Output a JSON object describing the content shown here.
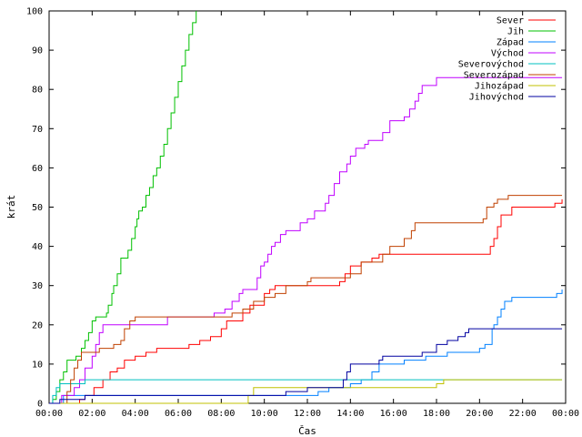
{
  "chart_data": {
    "type": "line",
    "step": true,
    "title": "",
    "xlabel": "Čas",
    "ylabel": "krát",
    "xlim": [
      "00:00",
      "24:00"
    ],
    "ylim": [
      0,
      100
    ],
    "x_ticks": [
      "00:00",
      "02:00",
      "04:00",
      "06:00",
      "08:00",
      "10:00",
      "12:00",
      "14:00",
      "16:00",
      "18:00",
      "20:00",
      "22:00",
      "00:00"
    ],
    "y_ticks": [
      "0",
      "10",
      "20",
      "30",
      "40",
      "50",
      "60",
      "70",
      "80",
      "90",
      "100"
    ],
    "grid": false,
    "legend_position": "top-right",
    "series": [
      {
        "name": "Sever",
        "color": "#ff0000",
        "points": [
          [
            "00:00",
            0
          ],
          [
            "01:25",
            1
          ],
          [
            "01:40",
            2
          ],
          [
            "02:05",
            4
          ],
          [
            "02:30",
            6
          ],
          [
            "02:50",
            8
          ],
          [
            "03:10",
            9
          ],
          [
            "03:30",
            11
          ],
          [
            "04:00",
            12
          ],
          [
            "04:30",
            13
          ],
          [
            "05:00",
            14
          ],
          [
            "06:30",
            15
          ],
          [
            "07:00",
            16
          ],
          [
            "07:30",
            17
          ],
          [
            "08:00",
            19
          ],
          [
            "08:15",
            21
          ],
          [
            "09:00",
            23
          ],
          [
            "09:20",
            25
          ],
          [
            "10:00",
            28
          ],
          [
            "10:15",
            29
          ],
          [
            "10:30",
            30
          ],
          [
            "13:30",
            31
          ],
          [
            "13:45",
            33
          ],
          [
            "14:00",
            35
          ],
          [
            "14:30",
            36
          ],
          [
            "15:00",
            37
          ],
          [
            "15:20",
            38
          ],
          [
            "20:30",
            40
          ],
          [
            "20:40",
            42
          ],
          [
            "20:50",
            45
          ],
          [
            "21:00",
            48
          ],
          [
            "21:30",
            50
          ],
          [
            "23:30",
            51
          ],
          [
            "23:50",
            52
          ]
        ]
      },
      {
        "name": "Jih",
        "color": "#00c000",
        "points": [
          [
            "00:00",
            0
          ],
          [
            "00:10",
            1
          ],
          [
            "00:20",
            3
          ],
          [
            "00:30",
            6
          ],
          [
            "00:40",
            8
          ],
          [
            "00:50",
            11
          ],
          [
            "01:15",
            12
          ],
          [
            "01:30",
            14
          ],
          [
            "01:40",
            16
          ],
          [
            "01:50",
            18
          ],
          [
            "02:00",
            21
          ],
          [
            "02:10",
            22
          ],
          [
            "02:40",
            23
          ],
          [
            "02:45",
            25
          ],
          [
            "02:55",
            28
          ],
          [
            "03:00",
            30
          ],
          [
            "03:10",
            33
          ],
          [
            "03:20",
            37
          ],
          [
            "03:40",
            39
          ],
          [
            "03:50",
            42
          ],
          [
            "04:00",
            45
          ],
          [
            "04:05",
            47
          ],
          [
            "04:10",
            49
          ],
          [
            "04:20",
            50
          ],
          [
            "04:30",
            53
          ],
          [
            "04:40",
            55
          ],
          [
            "04:50",
            58
          ],
          [
            "05:00",
            60
          ],
          [
            "05:10",
            63
          ],
          [
            "05:20",
            66
          ],
          [
            "05:30",
            70
          ],
          [
            "05:40",
            74
          ],
          [
            "05:50",
            78
          ],
          [
            "06:00",
            82
          ],
          [
            "06:10",
            86
          ],
          [
            "06:20",
            90
          ],
          [
            "06:30",
            94
          ],
          [
            "06:40",
            97
          ],
          [
            "06:50",
            100
          ]
        ]
      },
      {
        "name": "Západ",
        "color": "#0080ff",
        "points": [
          [
            "00:00",
            0
          ],
          [
            "00:40",
            2
          ],
          [
            "11:30",
            2
          ],
          [
            "12:30",
            3
          ],
          [
            "13:00",
            4
          ],
          [
            "14:00",
            5
          ],
          [
            "14:30",
            6
          ],
          [
            "15:00",
            8
          ],
          [
            "15:20",
            10
          ],
          [
            "16:30",
            11
          ],
          [
            "17:30",
            12
          ],
          [
            "18:30",
            13
          ],
          [
            "20:00",
            14
          ],
          [
            "20:15",
            15
          ],
          [
            "20:35",
            19
          ],
          [
            "20:40",
            20
          ],
          [
            "20:50",
            22
          ],
          [
            "21:00",
            24
          ],
          [
            "21:10",
            26
          ],
          [
            "21:30",
            27
          ],
          [
            "23:35",
            28
          ],
          [
            "23:50",
            29
          ]
        ]
      },
      {
        "name": "Východ",
        "color": "#c000ff",
        "points": [
          [
            "00:00",
            0
          ],
          [
            "00:35",
            2
          ],
          [
            "01:10",
            4
          ],
          [
            "01:25",
            6
          ],
          [
            "01:40",
            9
          ],
          [
            "02:00",
            12
          ],
          [
            "02:10",
            15
          ],
          [
            "02:20",
            18
          ],
          [
            "02:30",
            20
          ],
          [
            "05:10",
            20
          ],
          [
            "05:30",
            22
          ],
          [
            "07:40",
            23
          ],
          [
            "08:10",
            24
          ],
          [
            "08:30",
            26
          ],
          [
            "08:50",
            28
          ],
          [
            "09:00",
            29
          ],
          [
            "09:40",
            32
          ],
          [
            "09:50",
            35
          ],
          [
            "10:00",
            36
          ],
          [
            "10:10",
            38
          ],
          [
            "10:20",
            40
          ],
          [
            "10:30",
            41
          ],
          [
            "10:45",
            43
          ],
          [
            "11:00",
            44
          ],
          [
            "11:40",
            46
          ],
          [
            "12:00",
            47
          ],
          [
            "12:20",
            49
          ],
          [
            "12:50",
            51
          ],
          [
            "13:00",
            53
          ],
          [
            "13:15",
            56
          ],
          [
            "13:30",
            59
          ],
          [
            "13:50",
            61
          ],
          [
            "14:00",
            63
          ],
          [
            "14:15",
            65
          ],
          [
            "14:40",
            66
          ],
          [
            "14:50",
            67
          ],
          [
            "15:30",
            69
          ],
          [
            "15:50",
            72
          ],
          [
            "16:30",
            73
          ],
          [
            "16:45",
            75
          ],
          [
            "17:00",
            77
          ],
          [
            "17:10",
            79
          ],
          [
            "17:20",
            81
          ],
          [
            "18:00",
            83
          ],
          [
            "23:50",
            83
          ]
        ]
      },
      {
        "name": "Severovýchod",
        "color": "#00c0c0",
        "points": [
          [
            "00:00",
            0
          ],
          [
            "00:10",
            2
          ],
          [
            "00:20",
            4
          ],
          [
            "00:30",
            5
          ],
          [
            "01:40",
            6
          ],
          [
            "18:20",
            6
          ],
          [
            "23:50",
            6
          ]
        ]
      },
      {
        "name": "Severozápad",
        "color": "#c04000",
        "points": [
          [
            "00:00",
            0
          ],
          [
            "00:50",
            3
          ],
          [
            "01:00",
            6
          ],
          [
            "01:10",
            9
          ],
          [
            "01:20",
            11
          ],
          [
            "01:30",
            13
          ],
          [
            "02:20",
            14
          ],
          [
            "03:00",
            15
          ],
          [
            "03:20",
            16
          ],
          [
            "03:30",
            19
          ],
          [
            "03:45",
            21
          ],
          [
            "04:00",
            22
          ],
          [
            "08:30",
            23
          ],
          [
            "09:00",
            24
          ],
          [
            "09:30",
            26
          ],
          [
            "10:00",
            27
          ],
          [
            "10:30",
            28
          ],
          [
            "11:00",
            30
          ],
          [
            "12:00",
            31
          ],
          [
            "12:10",
            32
          ],
          [
            "14:00",
            33
          ],
          [
            "14:30",
            36
          ],
          [
            "15:30",
            38
          ],
          [
            "15:50",
            40
          ],
          [
            "16:30",
            42
          ],
          [
            "16:50",
            44
          ],
          [
            "17:00",
            46
          ],
          [
            "20:10",
            47
          ],
          [
            "20:20",
            50
          ],
          [
            "20:40",
            51
          ],
          [
            "20:50",
            52
          ],
          [
            "21:20",
            53
          ],
          [
            "23:50",
            53
          ]
        ]
      },
      {
        "name": "Jihozápad",
        "color": "#c0c000",
        "points": [
          [
            "00:00",
            0
          ],
          [
            "08:00",
            0
          ],
          [
            "09:15",
            2
          ],
          [
            "09:30",
            4
          ],
          [
            "18:00",
            5
          ],
          [
            "18:20",
            6
          ],
          [
            "23:50",
            6
          ]
        ]
      },
      {
        "name": "Jihovýchod",
        "color": "#0000a0",
        "points": [
          [
            "00:00",
            0
          ],
          [
            "00:30",
            1
          ],
          [
            "01:40",
            2
          ],
          [
            "10:30",
            2
          ],
          [
            "11:00",
            3
          ],
          [
            "12:00",
            4
          ],
          [
            "13:40",
            6
          ],
          [
            "13:50",
            8
          ],
          [
            "14:00",
            10
          ],
          [
            "15:20",
            11
          ],
          [
            "15:30",
            12
          ],
          [
            "17:20",
            13
          ],
          [
            "18:00",
            15
          ],
          [
            "18:30",
            16
          ],
          [
            "19:00",
            17
          ],
          [
            "19:20",
            18
          ],
          [
            "19:30",
            19
          ],
          [
            "23:50",
            19
          ]
        ]
      }
    ]
  }
}
